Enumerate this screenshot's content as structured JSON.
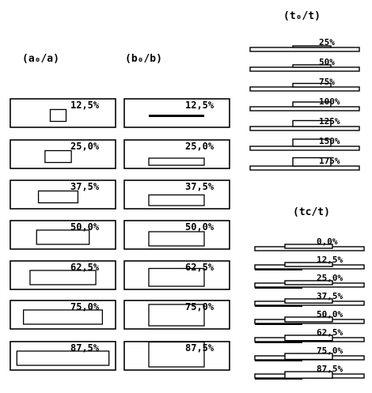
{
  "headers": {
    "a": "(a₀/a)",
    "b": "(b₀/b)",
    "td": "(t₀/t)",
    "tc": "(tc/t)"
  },
  "columns": {
    "a": {
      "labels": [
        "12,5%",
        "25,0%",
        "37,5%",
        "50,0%",
        "62,5%",
        "75,0%",
        "87,5%"
      ],
      "ratios": [
        0.125,
        0.25,
        0.375,
        0.5,
        0.625,
        0.75,
        0.875
      ]
    },
    "b": {
      "labels": [
        "12,5%",
        "25,0%",
        "37,5%",
        "50,0%",
        "62,5%",
        "75,0%",
        "87,5%"
      ],
      "ratios": [
        0.125,
        0.25,
        0.375,
        0.5,
        0.625,
        0.75,
        0.875
      ]
    },
    "td": {
      "labels": [
        "25%",
        "50%",
        "75%",
        "100%",
        "125%",
        "150%",
        "175%"
      ],
      "ratios": [
        0.25,
        0.5,
        0.75,
        1.0,
        1.25,
        1.5,
        1.75
      ]
    },
    "tc": {
      "labels": [
        "0,0%",
        "12,5%",
        "25,0%",
        "37,5%",
        "50,0%",
        "62,5%",
        "75,0%",
        "87,5%"
      ],
      "ratios": [
        0.0,
        0.125,
        0.25,
        0.375,
        0.5,
        0.625,
        0.75,
        0.875
      ]
    }
  }
}
